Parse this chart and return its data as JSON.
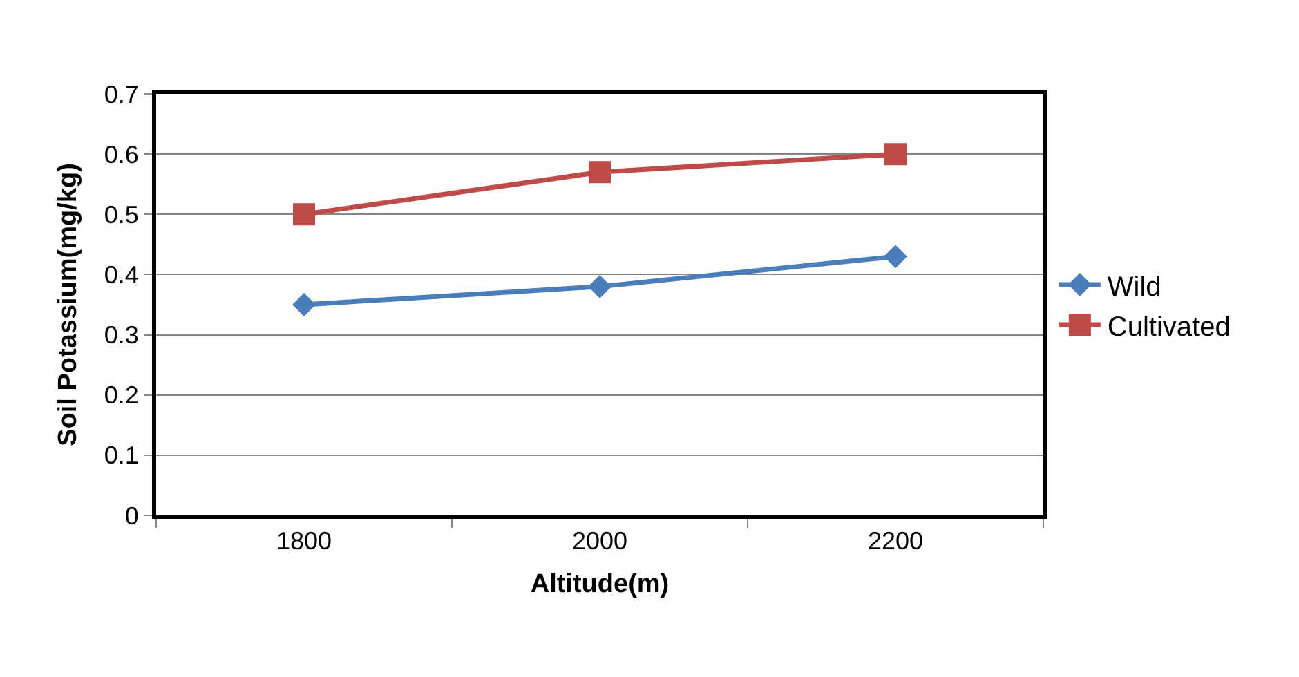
{
  "chart_data": {
    "type": "line",
    "xlabel": "Altitude(m)",
    "ylabel": "Soil Potassium(mg/kg)",
    "categories": [
      "1800",
      "2000",
      "2200"
    ],
    "series": [
      {
        "name": "Wild",
        "color": "#4a7ebb",
        "marker": "diamond",
        "values": [
          0.35,
          0.38,
          0.43
        ]
      },
      {
        "name": "Cultivated",
        "color": "#be4b48",
        "marker": "square",
        "values": [
          0.5,
          0.57,
          0.6
        ]
      }
    ],
    "ylim": [
      0,
      0.7
    ],
    "yticks": [
      0,
      0.1,
      0.2,
      0.3,
      0.4,
      0.5,
      0.6,
      0.7
    ],
    "grid": "y",
    "legend": "right",
    "line_style": "solid"
  }
}
